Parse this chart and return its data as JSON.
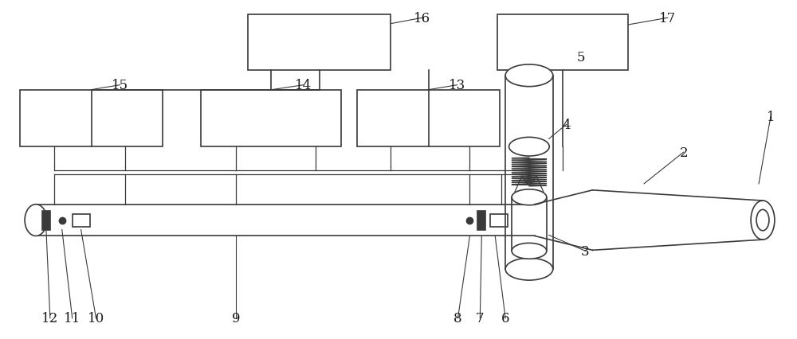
{
  "fig_width": 10.0,
  "fig_height": 4.27,
  "dpi": 100,
  "bg_color": "#ffffff",
  "line_color": "#3a3a3a",
  "lw": 1.2,
  "thin_lw": 0.9
}
